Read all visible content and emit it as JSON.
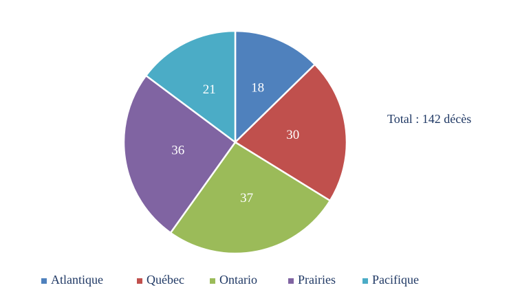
{
  "chart_data": {
    "type": "pie",
    "categories": [
      "Atlantique",
      "Québec",
      "Ontario",
      "Prairies",
      "Pacifique"
    ],
    "values": [
      18,
      30,
      37,
      36,
      21
    ],
    "colors": [
      "#4f81bd",
      "#c0504d",
      "#9bbb59",
      "#8064a2",
      "#4bacc6"
    ],
    "annotation": "Total : 142 décès",
    "legend": "bottom"
  }
}
